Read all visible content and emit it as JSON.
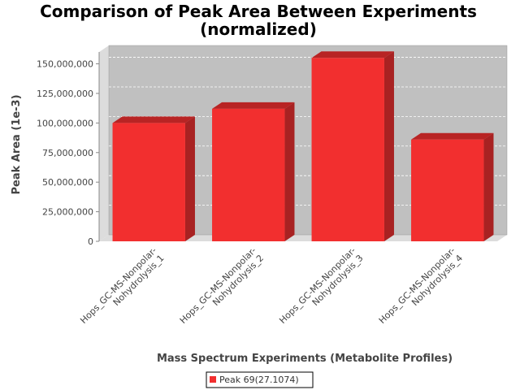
{
  "chart_data": {
    "type": "bar",
    "title_lines": [
      "Comparison of Peak Area Between Experiments",
      "(normalized)"
    ],
    "xlabel": "Mass Spectrum Experiments (Metabolite Profiles)",
    "ylabel": "Peak Area (1e-3)",
    "categories": [
      [
        "Hops_GC-MS-Nonpolar-",
        "Nohydrolysis_1"
      ],
      [
        "Hops_GC-MS-Nonpolar-",
        "Nohydrolysis_2"
      ],
      [
        "Hops_GC-MS-Nonpolar-",
        "Nohydrolysis_3"
      ],
      [
        "Hops_GC-MS-Nonpolar-",
        "Nohydrolysis_4"
      ]
    ],
    "series": [
      {
        "name": "Peak 69(27.1074)",
        "values": [
          100000000,
          112000000,
          155000000,
          86000000
        ]
      }
    ],
    "ylim": [
      0,
      160000000
    ],
    "yticks": [
      0,
      25000000,
      50000000,
      75000000,
      100000000,
      125000000,
      150000000
    ],
    "ytick_labels": [
      "0",
      "25,000,000",
      "50,000,000",
      "75,000,000",
      "100,000,000",
      "125,000,000",
      "150,000,000"
    ],
    "grid": true,
    "legend_position": "bottom",
    "colors": {
      "bar_front": "#f22f2f",
      "bar_top": "#b82424",
      "bar_side": "#a82222",
      "plot_bg": "#c0c0c0",
      "wall": "#dcdcdc",
      "gridline": "#ffffff"
    }
  }
}
